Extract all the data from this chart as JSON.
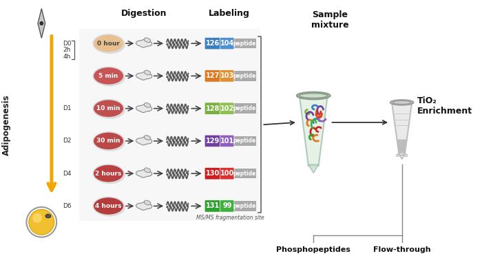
{
  "bg_color": "#ffffff",
  "time_points": [
    "0 hour",
    "5 min",
    "10 min",
    "30 min",
    "2 hours",
    "4 hours"
  ],
  "cell_colors": [
    "#e8c090",
    "#c85555",
    "#c05050",
    "#bb4848",
    "#b84040",
    "#b53c3c"
  ],
  "label_colors_left": [
    "#3a7fc1",
    "#e07820",
    "#7ab040",
    "#7040a0",
    "#cc2020",
    "#30a030"
  ],
  "label_colors_right": [
    "#5090d0",
    "#e09030",
    "#90c050",
    "#9060c0",
    "#dd3030",
    "#40b040"
  ],
  "label_numbers_left": [
    "126",
    "127",
    "128",
    "129",
    "130",
    "131"
  ],
  "label_numbers_right": [
    "104",
    "103",
    "102",
    "101",
    "100",
    "99"
  ],
  "day_labels": [
    "D0",
    "2h",
    "4h",
    "D1",
    "D2",
    "D4",
    "D6"
  ],
  "digestion_label": "Digestion",
  "labeling_label": "Labeling",
  "sample_mixture_label": "Sample\nmixture",
  "tio2_label": "TiO₂\nEnrichment",
  "phosphopeptides_label": "Phosphopeptides",
  "flow_through_label": "Flow-through",
  "ms_label": "MS/MS fragmentation site",
  "adipogenesis_label": "Adipogenesis",
  "peptide_colors": [
    "#e07820",
    "#3a7fc1",
    "#7040a0",
    "#cc2020",
    "#30a030",
    "#7ab040",
    "#e07820",
    "#9060c0",
    "#dd3030",
    "#40b040",
    "#3a7fc1",
    "#e04010",
    "#7040a0",
    "#cc2020"
  ]
}
